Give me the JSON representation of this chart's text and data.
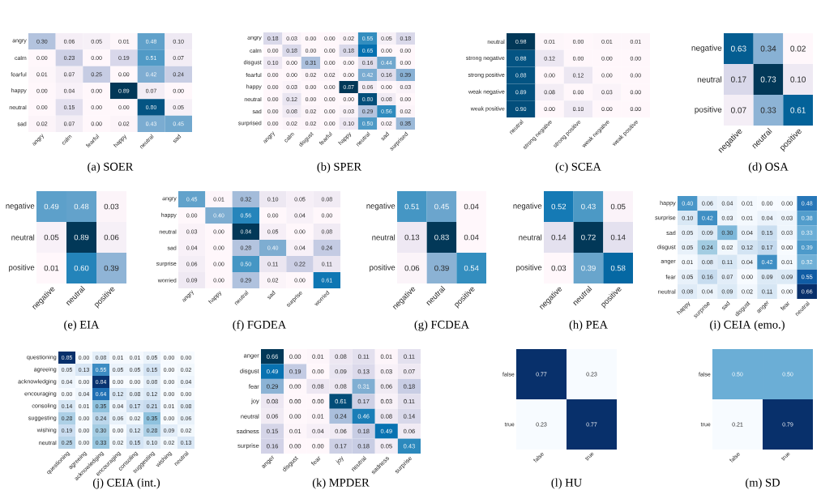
{
  "chart_data": [
    {
      "type": "heatmap",
      "title": "(a) SOER",
      "color": "#023858",
      "categories": [
        "angry",
        "calm",
        "fearful",
        "happy",
        "neutral",
        "sad"
      ],
      "y_categories": [
        "angry",
        "calm",
        "fearful",
        "happy",
        "neutral",
        "sad"
      ],
      "cells": [
        [
          0.3,
          0.06,
          0.05,
          0.01,
          0.48,
          0.1
        ],
        [
          0.0,
          0.23,
          0.0,
          0.19,
          0.51,
          0.07
        ],
        [
          0.01,
          0.07,
          0.25,
          0.0,
          0.42,
          0.24
        ],
        [
          0.0,
          0.04,
          0.0,
          0.89,
          0.07,
          0.0
        ],
        [
          0.0,
          0.15,
          0.0,
          0.0,
          0.8,
          0.05
        ],
        [
          0.02,
          0.07,
          0.0,
          0.02,
          0.43,
          0.45
        ]
      ],
      "cell_labels": [
        [
          "0.30",
          "0.06",
          "0.05",
          "0.01",
          "0.48",
          "0.10"
        ],
        [
          "0.00",
          "0.23",
          "0.00",
          "0.19",
          "0.51",
          "0.07"
        ],
        [
          "0.01",
          "0.07",
          "0.25",
          "0.00",
          "0.42",
          "0.24"
        ],
        [
          "0.00",
          "0.04",
          "0.00",
          "0.89",
          "0.07",
          "0.00"
        ],
        [
          "0.00",
          "0.15",
          "0.00",
          "0.00",
          "0.80",
          "0.05"
        ],
        [
          "0.02",
          "0.07",
          "0.00",
          "0.02",
          "0.43",
          "0.45"
        ]
      ]
    },
    {
      "type": "heatmap",
      "title": "(b) SPER",
      "color": "#023858",
      "categories": [
        "angry",
        "calm",
        "disgust",
        "fearful",
        "happy",
        "neutral",
        "sad",
        "surprised"
      ],
      "y_categories": [
        "angry",
        "calm",
        "disgust",
        "fearful",
        "happy",
        "neutral",
        "sad",
        "surprised"
      ],
      "cells": [
        [
          0.18,
          0.03,
          0.0,
          0.0,
          0.02,
          0.55,
          0.05,
          0.18
        ],
        [
          0.0,
          0.18,
          0.0,
          0.0,
          0.18,
          0.65,
          0.0,
          0.0
        ],
        [
          0.1,
          0.0,
          0.31,
          0.0,
          0.0,
          0.16,
          0.44,
          0.0
        ],
        [
          0.0,
          0.0,
          0.02,
          0.02,
          0.0,
          0.42,
          0.16,
          0.39
        ],
        [
          0.0,
          0.03,
          0.0,
          0.0,
          0.87,
          0.06,
          0.0,
          0.03
        ],
        [
          0.0,
          0.12,
          0.0,
          0.0,
          0.0,
          0.8,
          0.08,
          0.0
        ],
        [
          0.0,
          0.08,
          0.02,
          0.0,
          0.03,
          0.29,
          0.56,
          0.02
        ],
        [
          0.0,
          0.02,
          0.02,
          0.0,
          0.1,
          0.5,
          0.02,
          0.35
        ]
      ],
      "cell_labels": [
        [
          "0.18",
          "0.03",
          "0.00",
          "0.00",
          "0.02",
          "0.55",
          "0.05",
          "0.18"
        ],
        [
          "0.00",
          "0.18",
          "0.00",
          "0.00",
          "0.18",
          "0.65",
          "0.00",
          "0.00"
        ],
        [
          "0.10",
          "0.00",
          "0.31",
          "0.00",
          "0.00",
          "0.16",
          "0.44",
          "0.00"
        ],
        [
          "0.00",
          "0.00",
          "0.02",
          "0.02",
          "0.00",
          "0.42",
          "0.16",
          "0.39"
        ],
        [
          "0.00",
          "0.03",
          "0.00",
          "0.00",
          "0.87",
          "0.06",
          "0.00",
          "0.03"
        ],
        [
          "0.00",
          "0.12",
          "0.00",
          "0.00",
          "0.00",
          "0.80",
          "0.08",
          "0.00"
        ],
        [
          "0.00",
          "0.08",
          "0.02",
          "0.00",
          "0.03",
          "0.29",
          "0.56",
          "0.02"
        ],
        [
          "0.00",
          "0.02",
          "0.02",
          "0.00",
          "0.10",
          "0.50",
          "0.02",
          "0.35"
        ]
      ]
    },
    {
      "type": "heatmap",
      "title": "(c) SCEA",
      "color": "#023858",
      "categories": [
        "neutral",
        "strong negative",
        "strong positive",
        "weak negative",
        "weak positive"
      ],
      "y_categories": [
        "neutral",
        "strong negative",
        "strong positive",
        "weak negative",
        "weak positive"
      ],
      "cells": [
        [
          0.98,
          0.01,
          0.0,
          0.01,
          0.01
        ],
        [
          0.88,
          0.12,
          0.0,
          0.0,
          0.0
        ],
        [
          0.88,
          0.0,
          0.12,
          0.0,
          0.0
        ],
        [
          0.89,
          0.08,
          0.0,
          0.03,
          0.0
        ],
        [
          0.9,
          0.0,
          0.1,
          0.0,
          0.0
        ]
      ],
      "cell_labels": [
        [
          "0.98",
          "0.01",
          "0.00",
          "0.01",
          "0.01"
        ],
        [
          "0.88",
          "0.12",
          "0.00",
          "0.00",
          "0.00"
        ],
        [
          "0.88",
          "0.00",
          "0.12",
          "0.00",
          "0.00"
        ],
        [
          "0.89",
          "0.08",
          "0.00",
          "0.03",
          "0.00"
        ],
        [
          "0.90",
          "0.00",
          "0.10",
          "0.00",
          "0.00"
        ]
      ]
    },
    {
      "type": "heatmap",
      "title": "(d) OSA",
      "color": "#023858",
      "categories": [
        "negative",
        "neutral",
        "positive"
      ],
      "y_categories": [
        "negative",
        "neutral",
        "positive"
      ],
      "cells": [
        [
          0.63,
          0.34,
          0.02
        ],
        [
          0.17,
          0.73,
          0.1
        ],
        [
          0.07,
          0.33,
          0.61
        ]
      ],
      "cell_labels": [
        [
          "0.63",
          "0.34",
          "0.02"
        ],
        [
          "0.17",
          "0.73",
          "0.10"
        ],
        [
          "0.07",
          "0.33",
          "0.61"
        ]
      ]
    },
    {
      "type": "heatmap",
      "title": "(e) EIA",
      "color": "#023858",
      "categories": [
        "negative",
        "neutral",
        "positive"
      ],
      "y_categories": [
        "negative",
        "neutral",
        "positive"
      ],
      "cells": [
        [
          0.49,
          0.48,
          0.03
        ],
        [
          0.05,
          0.89,
          0.06
        ],
        [
          0.01,
          0.6,
          0.39
        ]
      ],
      "cell_labels": [
        [
          "0.49",
          "0.48",
          "0.03"
        ],
        [
          "0.05",
          "0.89",
          "0.06"
        ],
        [
          "0.01",
          "0.60",
          "0.39"
        ]
      ]
    },
    {
      "type": "heatmap",
      "title": "(f) FGDEA",
      "color": "#023858",
      "categories": [
        "angry",
        "happy",
        "neutral",
        "sad",
        "surprise",
        "worried"
      ],
      "y_categories": [
        "angry",
        "happy",
        "neutral",
        "sad",
        "surprise",
        "worried"
      ],
      "cells": [
        [
          0.45,
          0.01,
          0.32,
          0.1,
          0.05,
          0.08
        ],
        [
          0.0,
          0.4,
          0.56,
          0.0,
          0.04,
          0.0
        ],
        [
          0.03,
          0.0,
          0.84,
          0.05,
          0.0,
          0.08
        ],
        [
          0.04,
          0.0,
          0.28,
          0.4,
          0.04,
          0.24
        ],
        [
          0.06,
          0.0,
          0.5,
          0.11,
          0.22,
          0.11
        ],
        [
          0.09,
          0.0,
          0.29,
          0.02,
          0.0,
          0.61
        ]
      ],
      "cell_labels": [
        [
          "0.45",
          "0.01",
          "0.32",
          "0.10",
          "0.05",
          "0.08"
        ],
        [
          "0.00",
          "0.40",
          "0.56",
          "0.00",
          "0.04",
          "0.00"
        ],
        [
          "0.03",
          "0.00",
          "0.84",
          "0.05",
          "0.00",
          "0.08"
        ],
        [
          "0.04",
          "0.00",
          "0.28",
          "0.40",
          "0.04",
          "0.24"
        ],
        [
          "0.06",
          "0.00",
          "0.50",
          "0.11",
          "0.22",
          "0.11"
        ],
        [
          "0.09",
          "0.00",
          "0.29",
          "0.02",
          "0.00",
          "0.61"
        ]
      ]
    },
    {
      "type": "heatmap",
      "title": "(g) FCDEA",
      "color": "#023858",
      "categories": [
        "negative",
        "neutral",
        "positive"
      ],
      "y_categories": [
        "negative",
        "neutral",
        "positive"
      ],
      "cells": [
        [
          0.51,
          0.45,
          0.04
        ],
        [
          0.13,
          0.83,
          0.04
        ],
        [
          0.06,
          0.39,
          0.54
        ]
      ],
      "cell_labels": [
        [
          "0.51",
          "0.45",
          "0.04"
        ],
        [
          "0.13",
          "0.83",
          "0.04"
        ],
        [
          "0.06",
          "0.39",
          "0.54"
        ]
      ]
    },
    {
      "type": "heatmap",
      "title": "(h) PEA",
      "color": "#023858",
      "categories": [
        "negative",
        "neutral",
        "positive"
      ],
      "y_categories": [
        "negative",
        "neutral",
        "positive"
      ],
      "cells": [
        [
          0.52,
          0.43,
          0.05
        ],
        [
          0.14,
          0.72,
          0.14
        ],
        [
          0.03,
          0.39,
          0.58
        ]
      ],
      "cell_labels": [
        [
          "0.52",
          "0.43",
          "0.05"
        ],
        [
          "0.14",
          "0.72",
          "0.14"
        ],
        [
          "0.03",
          "0.39",
          "0.58"
        ]
      ]
    },
    {
      "type": "heatmap",
      "title": "(i) CEIA (emo.)",
      "color": "#08306b",
      "categories": [
        "happy",
        "surprise",
        "sad",
        "disgust",
        "anger",
        "fear",
        "neutral"
      ],
      "y_categories": [
        "happy",
        "surprise",
        "sad",
        "disgust",
        "anger",
        "fear",
        "neutral"
      ],
      "cells": [
        [
          0.4,
          0.06,
          0.04,
          0.01,
          0.0,
          0.0,
          0.48
        ],
        [
          0.1,
          0.42,
          0.03,
          0.01,
          0.04,
          0.03,
          0.38
        ],
        [
          0.05,
          0.09,
          0.3,
          0.04,
          0.15,
          0.03,
          0.33
        ],
        [
          0.05,
          0.24,
          0.02,
          0.12,
          0.17,
          0.0,
          0.39
        ],
        [
          0.01,
          0.08,
          0.11,
          0.04,
          0.42,
          0.01,
          0.32
        ],
        [
          0.05,
          0.16,
          0.07,
          0.0,
          0.09,
          0.09,
          0.55
        ],
        [
          0.08,
          0.04,
          0.09,
          0.02,
          0.11,
          0.0,
          0.66
        ]
      ],
      "cell_labels": [
        [
          "0.40",
          "0.06",
          "0.04",
          "0.01",
          "0.00",
          "0.00",
          "0.48"
        ],
        [
          "0.10",
          "0.42",
          "0.03",
          "0.01",
          "0.04",
          "0.03",
          "0.38"
        ],
        [
          "0.05",
          "0.09",
          "0.30",
          "0.04",
          "0.15",
          "0.03",
          "0.33"
        ],
        [
          "0.05",
          "0.24",
          "0.02",
          "0.12",
          "0.17",
          "0.00",
          "0.39"
        ],
        [
          "0.01",
          "0.08",
          "0.11",
          "0.04",
          "0.42",
          "0.01",
          "0.32"
        ],
        [
          "0.05",
          "0.16",
          "0.07",
          "0.00",
          "0.09",
          "0.09",
          "0.55"
        ],
        [
          "0.08",
          "0.04",
          "0.09",
          "0.02",
          "0.11",
          "0.00",
          "0.66"
        ]
      ]
    },
    {
      "type": "heatmap",
      "title": "(j) CEIA (int.)",
      "color": "#08306b",
      "categories": [
        "questioning",
        "agreeing",
        "acknowledging",
        "encouraging",
        "consoling",
        "suggesting",
        "wishing",
        "neutral"
      ],
      "y_categories": [
        "questioning",
        "agreeing",
        "acknowledging",
        "encouraging",
        "consoling",
        "suggesting",
        "wishing",
        "neutral"
      ],
      "cells": [
        [
          0.85,
          0.0,
          0.08,
          0.01,
          0.01,
          0.05,
          0.0,
          0.0
        ],
        [
          0.05,
          0.13,
          0.55,
          0.05,
          0.05,
          0.15,
          0.0,
          0.02
        ],
        [
          0.04,
          0.0,
          0.84,
          0.0,
          0.0,
          0.08,
          0.0,
          0.04
        ],
        [
          0.0,
          0.04,
          0.64,
          0.12,
          0.08,
          0.12,
          0.0,
          0.0
        ],
        [
          0.14,
          0.01,
          0.35,
          0.04,
          0.17,
          0.21,
          0.01,
          0.08
        ],
        [
          0.28,
          0.0,
          0.24,
          0.06,
          0.02,
          0.35,
          0.0,
          0.06
        ],
        [
          0.19,
          0.0,
          0.3,
          0.0,
          0.12,
          0.28,
          0.09,
          0.02
        ],
        [
          0.25,
          0.0,
          0.33,
          0.02,
          0.15,
          0.1,
          0.02,
          0.13
        ]
      ],
      "cell_labels": [
        [
          "0.85",
          "0.00",
          "0.08",
          "0.01",
          "0.01",
          "0.05",
          "0.00",
          "0.00"
        ],
        [
          "0.05",
          "0.13",
          "0.55",
          "0.05",
          "0.05",
          "0.15",
          "0.00",
          "0.02"
        ],
        [
          "0.04",
          "0.00",
          "0.84",
          "0.00",
          "0.00",
          "0.08",
          "0.00",
          "0.04"
        ],
        [
          "0.00",
          "0.04",
          "0.64",
          "0.12",
          "0.08",
          "0.12",
          "0.00",
          "0.00"
        ],
        [
          "0.14",
          "0.01",
          "0.35",
          "0.04",
          "0.17",
          "0.21",
          "0.01",
          "0.08"
        ],
        [
          "0.28",
          "0.00",
          "0.24",
          "0.06",
          "0.02",
          "0.35",
          "0.00",
          "0.06"
        ],
        [
          "0.19",
          "0.00",
          "0.30",
          "0.00",
          "0.12",
          "0.28",
          "0.09",
          "0.02"
        ],
        [
          "0.25",
          "0.00",
          "0.33",
          "0.02",
          "0.15",
          "0.10",
          "0.02",
          "0.13"
        ]
      ]
    },
    {
      "type": "heatmap",
      "title": "(k) MPDER",
      "color": "#023858",
      "categories": [
        "anger",
        "disgust",
        "fear",
        "joy",
        "neutral",
        "sadness",
        "surprise"
      ],
      "y_categories": [
        "anger",
        "disgust",
        "fear",
        "joy",
        "neutral",
        "sadness",
        "surprise"
      ],
      "cells": [
        [
          0.66,
          0.0,
          0.01,
          0.08,
          0.11,
          0.01,
          0.11
        ],
        [
          0.49,
          0.19,
          0.0,
          0.09,
          0.13,
          0.03,
          0.07
        ],
        [
          0.29,
          0.0,
          0.08,
          0.08,
          0.31,
          0.06,
          0.18
        ],
        [
          0.08,
          0.0,
          0.0,
          0.61,
          0.17,
          0.03,
          0.11
        ],
        [
          0.06,
          0.0,
          0.01,
          0.24,
          0.46,
          0.08,
          0.14
        ],
        [
          0.15,
          0.01,
          0.04,
          0.06,
          0.18,
          0.49,
          0.06
        ],
        [
          0.16,
          0.0,
          0.0,
          0.17,
          0.18,
          0.05,
          0.43
        ]
      ],
      "cell_labels": [
        [
          "0.66",
          "0.00",
          "0.01",
          "0.08",
          "0.11",
          "0.01",
          "0.11"
        ],
        [
          "0.49",
          "0.19",
          "0.00",
          "0.09",
          "0.13",
          "0.03",
          "0.07"
        ],
        [
          "0.29",
          "0.00",
          "0.08",
          "0.08",
          "0.31",
          "0.06",
          "0.18"
        ],
        [
          "0.08",
          "0.00",
          "0.00",
          "0.61",
          "0.17",
          "0.03",
          "0.11"
        ],
        [
          "0.06",
          "0.00",
          "0.01",
          "0.24",
          "0.46",
          "0.08",
          "0.14"
        ],
        [
          "0.15",
          "0.01",
          "0.04",
          "0.06",
          "0.18",
          "0.49",
          "0.06"
        ],
        [
          "0.16",
          "0.00",
          "0.00",
          "0.17",
          "0.18",
          "0.05",
          "0.43"
        ]
      ]
    },
    {
      "type": "heatmap",
      "title": "(l) HU",
      "color": "#08306b",
      "categories": [
        "false",
        "true"
      ],
      "y_categories": [
        "false",
        "true"
      ],
      "cells": [
        [
          0.77,
          0.23
        ],
        [
          0.23,
          0.77
        ]
      ],
      "cell_labels": [
        [
          "0.77",
          "0.23"
        ],
        [
          "0.23",
          "0.77"
        ]
      ]
    },
    {
      "type": "heatmap",
      "title": "(m) SD",
      "color": "#08306b",
      "categories": [
        "false",
        "true"
      ],
      "y_categories": [
        "false",
        "true"
      ],
      "cells": [
        [
          0.5,
          0.5
        ],
        [
          0.21,
          0.79
        ]
      ],
      "cell_labels": [
        [
          "0.50",
          "0.50"
        ],
        [
          "0.21",
          "0.79"
        ]
      ]
    }
  ]
}
